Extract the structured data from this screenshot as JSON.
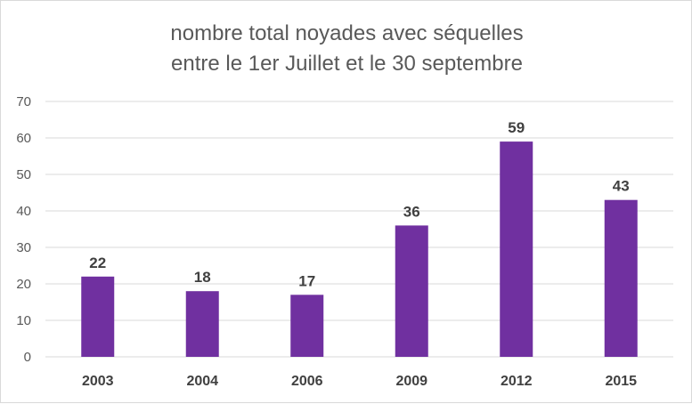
{
  "chart_data": {
    "type": "bar",
    "title_lines": [
      "nombre total noyades avec séquelles",
      "entre le 1er Juillet et le 30 septembre"
    ],
    "categories": [
      "2003",
      "2004",
      "2006",
      "2009",
      "2012",
      "2015"
    ],
    "values": [
      22,
      18,
      17,
      36,
      59,
      43
    ],
    "yticks": [
      0,
      10,
      20,
      30,
      40,
      50,
      60,
      70
    ],
    "ylim": [
      0,
      70
    ],
    "grid": true,
    "data_labels": true,
    "bar_color": "#7030a0",
    "grid_color": "#d9d9d9",
    "text_color": "#595959"
  }
}
